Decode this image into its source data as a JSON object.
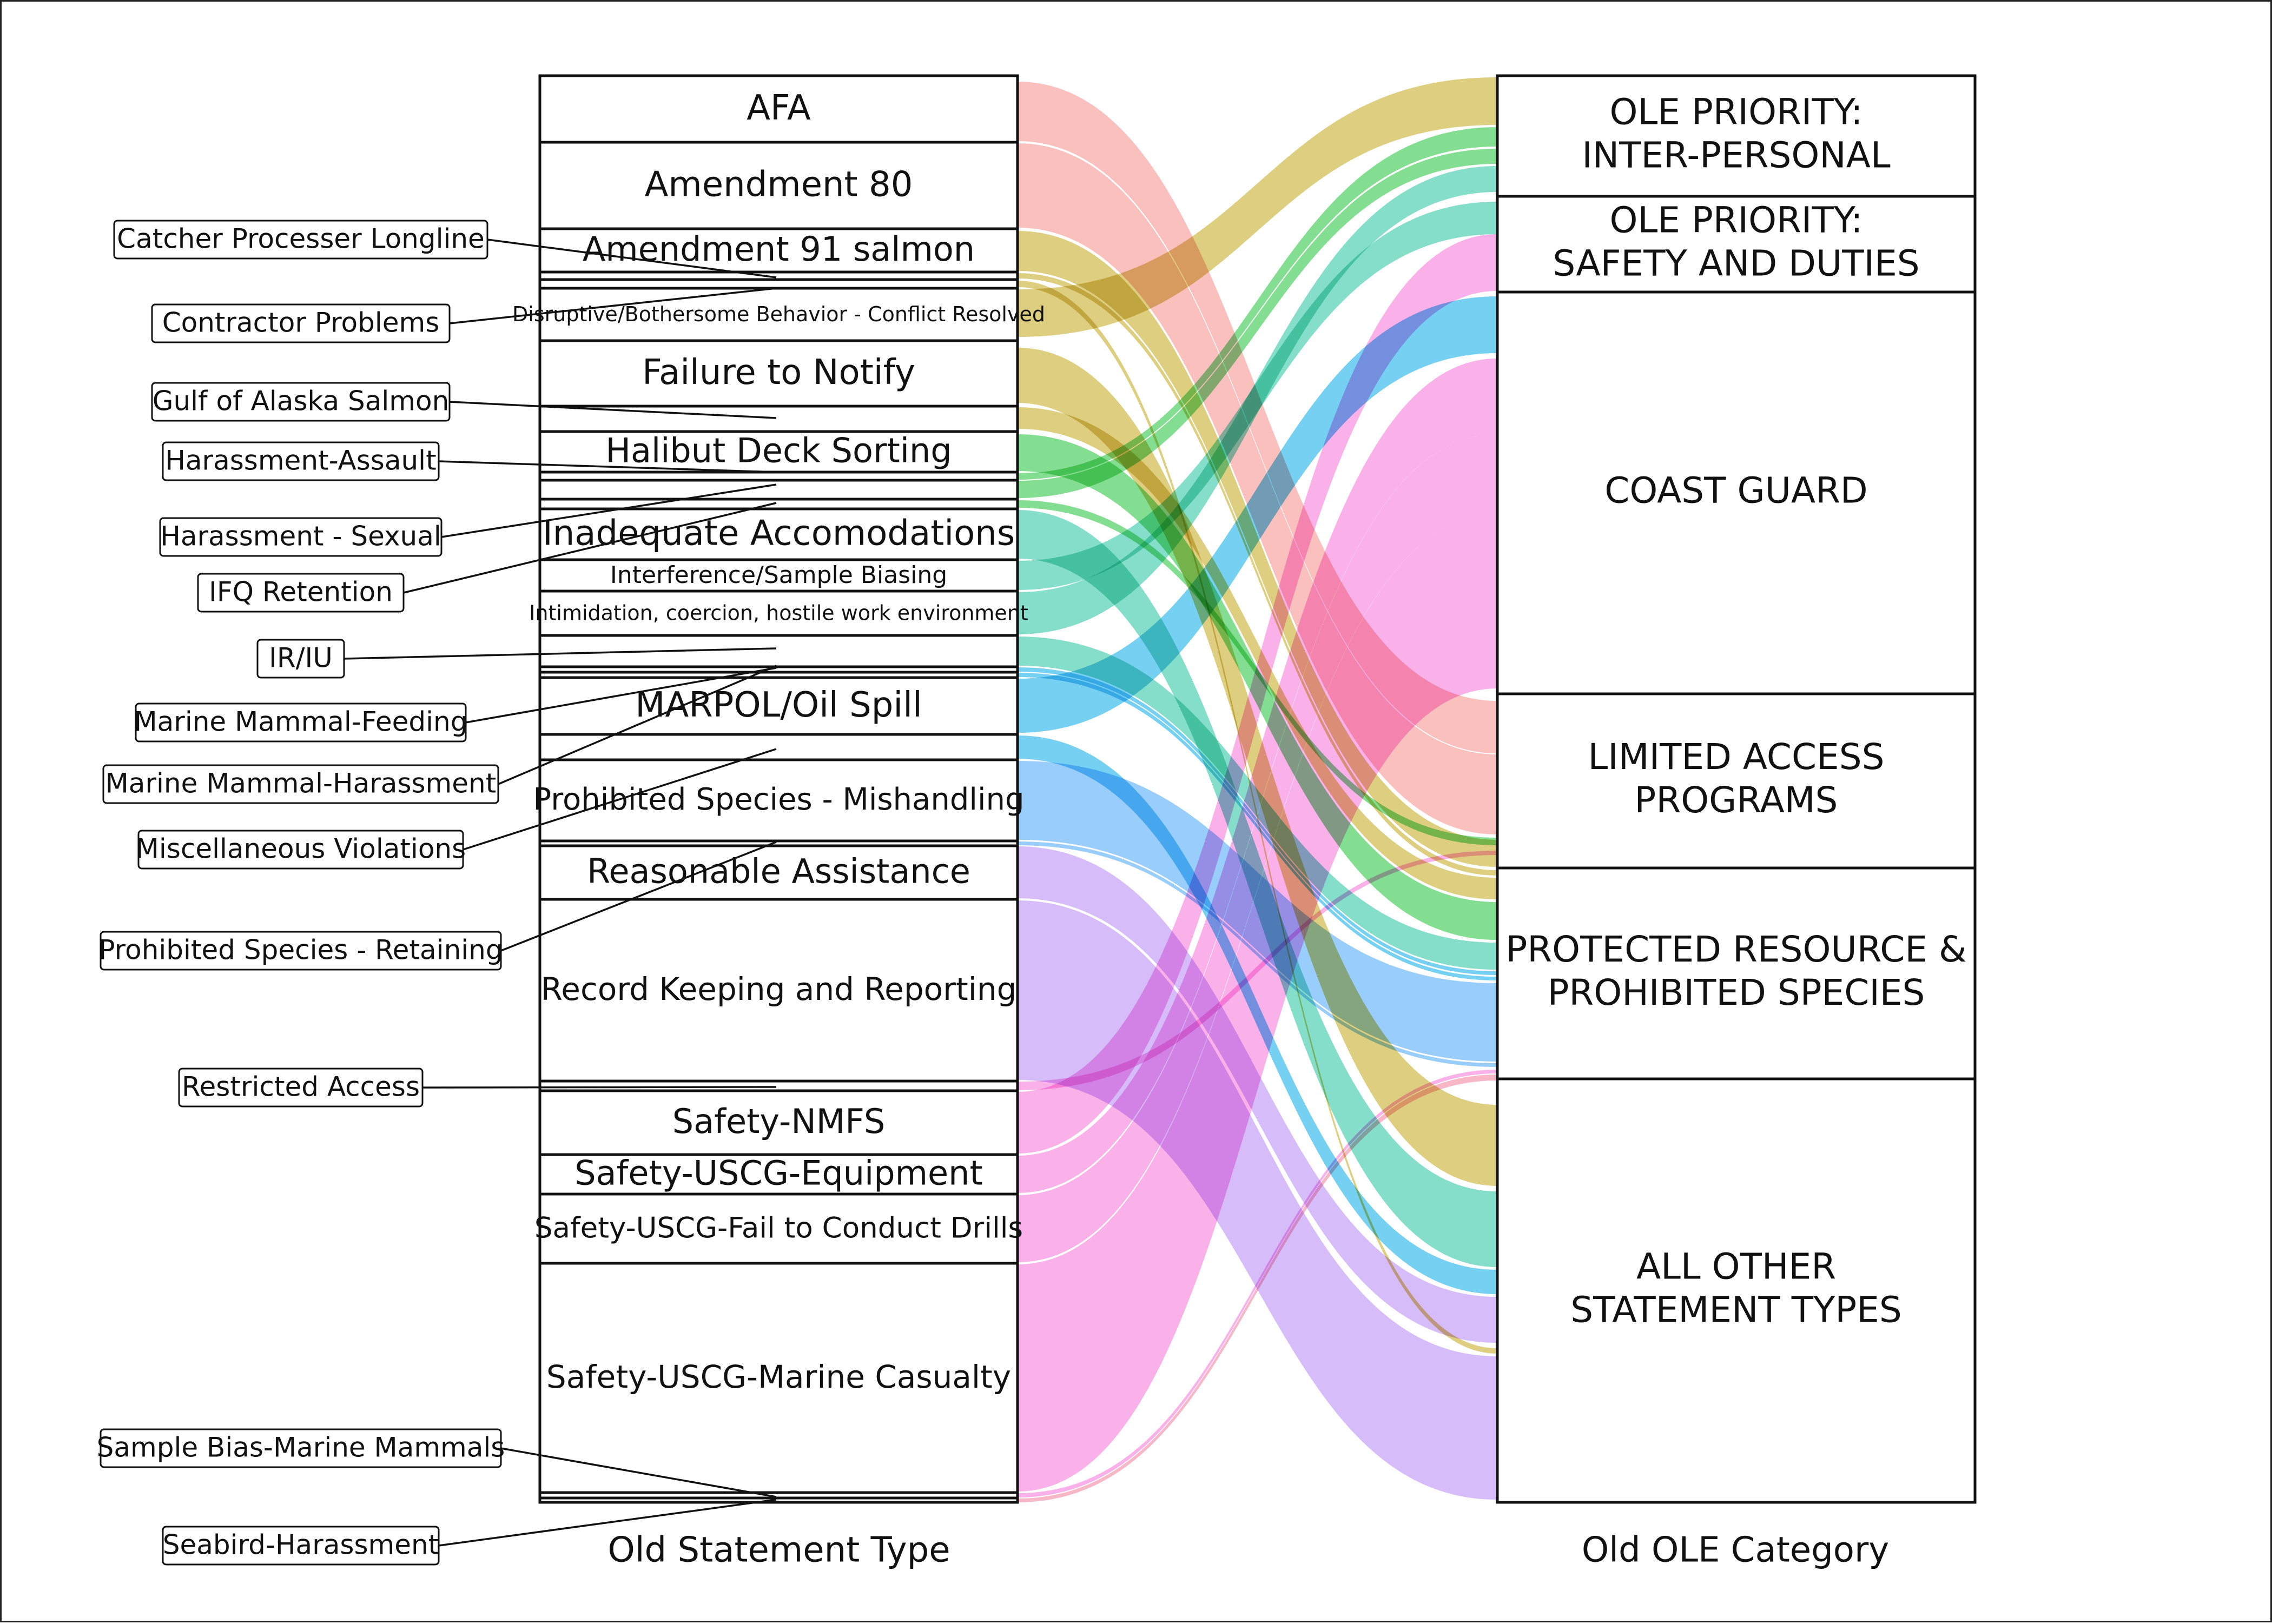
{
  "axis_labels": {
    "left": "Old Statement Type",
    "right": "Old OLE Category"
  },
  "colors": {
    "salmon": "#f59a96",
    "gold": "#c9b032",
    "green": "#38c94e",
    "teal": "#39c9aa",
    "sky": "#21b3ea",
    "blue": "#5aaef9",
    "lavender": "#bf93f7",
    "pink": "#f77fdc",
    "rose": "#f48aa4"
  },
  "left_nodes": [
    {
      "label": "AFA",
      "size": 64
    },
    {
      "label": "Amendment 80",
      "size": 64
    },
    {
      "label": "Amendment 91 salmon",
      "size": 62
    },
    {
      "label": "",
      "callout": "Catcher Processer Longline"
    },
    {
      "label": "",
      "callout": "Contractor Problems"
    },
    {
      "label": "Disruptive/Bothersome Behavior - Conflict Resolved",
      "size": 38
    },
    {
      "label": "Failure to Notify",
      "size": 64
    },
    {
      "label": "",
      "callout": "Gulf of Alaska Salmon"
    },
    {
      "label": "Halibut Deck Sorting",
      "size": 62
    },
    {
      "label": "",
      "callout": "Harassment-Assault"
    },
    {
      "label": "",
      "callout": "Harassment - Sexual"
    },
    {
      "label": "",
      "callout": "IFQ Retention"
    },
    {
      "label": "Inadequate Accomodations",
      "size": 64
    },
    {
      "label": "Interference/Sample Biasing",
      "size": 44
    },
    {
      "label": "Intimidation, coercion, hostile work environment",
      "size": 38
    },
    {
      "label": "",
      "callout": "IR/IU"
    },
    {
      "label": "",
      "callout": "Marine Mammal-Feeding"
    },
    {
      "label": "",
      "callout": "Marine Mammal-Harassment"
    },
    {
      "label": "MARPOL/Oil Spill",
      "size": 64
    },
    {
      "label": "",
      "callout": "Miscellaneous Violations"
    },
    {
      "label": "Prohibited Species - Mishandling",
      "size": 56
    },
    {
      "label": "",
      "callout": "Prohibited Species - Retaining"
    },
    {
      "label": "Reasonable Assistance",
      "size": 62
    },
    {
      "label": "Record Keeping and Reporting",
      "size": 58
    },
    {
      "label": "",
      "callout": "Restricted Access"
    },
    {
      "label": "Safety-NMFS",
      "size": 62
    },
    {
      "label": "Safety-USCG-Equipment",
      "size": 62
    },
    {
      "label": "Safety-USCG-Fail to Conduct Drills",
      "size": 53
    },
    {
      "label": "Safety-USCG-Marine Casualty",
      "size": 58
    },
    {
      "label": "",
      "callout": "Sample Bias-Marine Mammals"
    },
    {
      "label": "",
      "callout": "Seabird-Harassment"
    }
  ],
  "right_nodes": [
    {
      "lines": [
        "OLE PRIORITY:",
        "INTER-PERSONAL"
      ]
    },
    {
      "lines": [
        "OLE PRIORITY:",
        "SAFETY AND DUTIES"
      ]
    },
    {
      "lines": [
        "COAST GUARD"
      ]
    },
    {
      "lines": [
        "LIMITED ACCESS",
        "PROGRAMS"
      ]
    },
    {
      "lines": [
        "PROTECTED RESOURCE &",
        "PROHIBITED SPECIES"
      ]
    },
    {
      "lines": [
        "ALL OTHER",
        "STATEMENT TYPES"
      ]
    }
  ],
  "flows": [
    {
      "from": "AFA",
      "to": "LIMITED ACCESS PROGRAMS",
      "color": "salmon"
    },
    {
      "from": "Amendment 80",
      "to": "LIMITED ACCESS PROGRAMS",
      "color": "salmon"
    },
    {
      "from": "Amendment 91 salmon",
      "to": "PROTECTED RESOURCE & PROHIBITED SPECIES",
      "color": "gold"
    },
    {
      "from": "Catcher Processer Longline",
      "to": "LIMITED ACCESS PROGRAMS",
      "color": "gold"
    },
    {
      "from": "Contractor Problems",
      "to": "ALL OTHER STATEMENT TYPES",
      "color": "gold"
    },
    {
      "from": "Disruptive/Bothersome Behavior - Conflict Resolved",
      "to": "OLE PRIORITY: INTER-PERSONAL",
      "color": "gold"
    },
    {
      "from": "Failure to Notify",
      "to": "ALL OTHER STATEMENT TYPES",
      "color": "gold"
    },
    {
      "from": "Gulf of Alaska Salmon",
      "to": "PROTECTED RESOURCE & PROHIBITED SPECIES",
      "color": "gold"
    },
    {
      "from": "Halibut Deck Sorting",
      "to": "PROTECTED RESOURCE & PROHIBITED SPECIES",
      "color": "green"
    },
    {
      "from": "Harassment-Assault",
      "to": "OLE PRIORITY: INTER-PERSONAL",
      "color": "green"
    },
    {
      "from": "Harassment - Sexual",
      "to": "OLE PRIORITY: INTER-PERSONAL",
      "color": "green"
    },
    {
      "from": "IFQ Retention",
      "to": "LIMITED ACCESS PROGRAMS",
      "color": "green"
    },
    {
      "from": "Inadequate Accomodations",
      "to": "ALL OTHER STATEMENT TYPES",
      "color": "teal"
    },
    {
      "from": "Interference/Sample Biasing",
      "to": "OLE PRIORITY: SAFETY AND DUTIES",
      "color": "teal"
    },
    {
      "from": "Intimidation, coercion, hostile work environment",
      "to": "OLE PRIORITY: INTER-PERSONAL",
      "color": "teal"
    },
    {
      "from": "IR/IU",
      "to": "PROTECTED RESOURCE & PROHIBITED SPECIES",
      "color": "teal"
    },
    {
      "from": "Marine Mammal-Feeding",
      "to": "PROTECTED RESOURCE & PROHIBITED SPECIES",
      "color": "sky"
    },
    {
      "from": "Marine Mammal-Harassment",
      "to": "PROTECTED RESOURCE & PROHIBITED SPECIES",
      "color": "sky"
    },
    {
      "from": "MARPOL/Oil Spill",
      "to": "COAST GUARD",
      "color": "sky"
    },
    {
      "from": "Miscellaneous Violations",
      "to": "ALL OTHER STATEMENT TYPES",
      "color": "sky"
    },
    {
      "from": "Prohibited Species - Mishandling",
      "to": "PROTECTED RESOURCE & PROHIBITED SPECIES",
      "color": "blue"
    },
    {
      "from": "Prohibited Species - Retaining",
      "to": "PROTECTED RESOURCE & PROHIBITED SPECIES",
      "color": "blue"
    },
    {
      "from": "Reasonable Assistance",
      "to": "ALL OTHER STATEMENT TYPES",
      "color": "lavender"
    },
    {
      "from": "Record Keeping and Reporting",
      "to": "ALL OTHER STATEMENT TYPES",
      "color": "lavender"
    },
    {
      "from": "Restricted Access",
      "to": "LIMITED ACCESS PROGRAMS",
      "color": "pink"
    },
    {
      "from": "Safety-NMFS",
      "to": "OLE PRIORITY: SAFETY AND DUTIES",
      "color": "pink"
    },
    {
      "from": "Safety-USCG-Equipment",
      "to": "COAST GUARD",
      "color": "pink"
    },
    {
      "from": "Safety-USCG-Fail to Conduct Drills",
      "to": "COAST GUARD",
      "color": "pink"
    },
    {
      "from": "Safety-USCG-Marine Casualty",
      "to": "COAST GUARD",
      "color": "pink"
    },
    {
      "from": "Sample Bias-Marine Mammals",
      "to": "PROTECTED RESOURCE & PROHIBITED SPECIES",
      "color": "pink"
    },
    {
      "from": "Seabird-Harassment",
      "to": "PROTECTED RESOURCE & PROHIBITED SPECIES",
      "color": "rose"
    }
  ]
}
